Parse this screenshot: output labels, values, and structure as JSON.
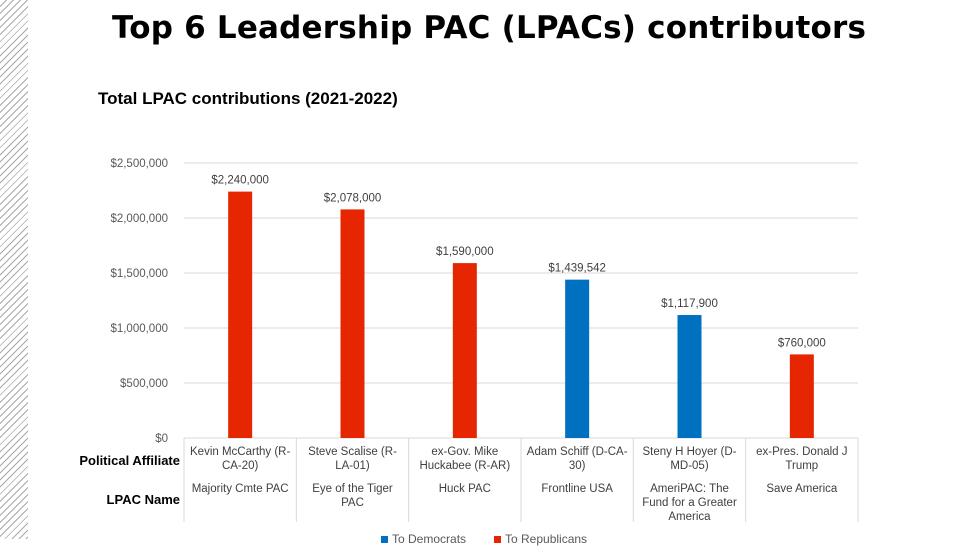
{
  "title": "Top 6 Leadership PAC (LPACs) contributors",
  "subtitle": "Total LPAC contributions (2021-2022)",
  "row_labels": {
    "affiliate": "Political Affiliate",
    "lpac": "LPAC Name"
  },
  "legend": [
    {
      "name": "To Democrats",
      "color": "#0070C0"
    },
    {
      "name": "To Republicans",
      "color": "#E52600"
    }
  ],
  "chart_data": {
    "type": "bar",
    "categories": [
      {
        "affiliate": "Kevin McCarthy (R-CA-20)",
        "lpac": "Majority Cmte PAC"
      },
      {
        "affiliate": "Steve Scalise (R-LA-01)",
        "lpac": "Eye of the Tiger PAC"
      },
      {
        "affiliate": "ex-Gov. Mike Huckabee (R-AR)",
        "lpac": "Huck PAC"
      },
      {
        "affiliate": "Adam Schiff (D-CA-30)",
        "lpac": "Frontline USA"
      },
      {
        "affiliate": "Steny H Hoyer (D-MD-05)",
        "lpac": "AmeriPAC: The Fund for a Greater America"
      },
      {
        "affiliate": "ex-Pres. Donald J Trump",
        "lpac": "Save America"
      }
    ],
    "series": [
      {
        "name": "To Democrats",
        "color": "#0070C0",
        "values": [
          null,
          null,
          null,
          1439542,
          1117900,
          null
        ]
      },
      {
        "name": "To Republicans",
        "color": "#E52600",
        "values": [
          2240000,
          2078000,
          1590000,
          null,
          null,
          760000
        ]
      }
    ],
    "data_labels": [
      "$2,240,000",
      "$2,078,000",
      "$1,590,000",
      "$1,439,542",
      "$1,117,900",
      "$760,000"
    ],
    "y_ticks": [
      "$0",
      "$500,000",
      "$1,000,000",
      "$1,500,000",
      "$2,000,000",
      "$2,500,000"
    ],
    "ylim": [
      0,
      2500000
    ],
    "grid": true,
    "legend_position": "bottom"
  }
}
